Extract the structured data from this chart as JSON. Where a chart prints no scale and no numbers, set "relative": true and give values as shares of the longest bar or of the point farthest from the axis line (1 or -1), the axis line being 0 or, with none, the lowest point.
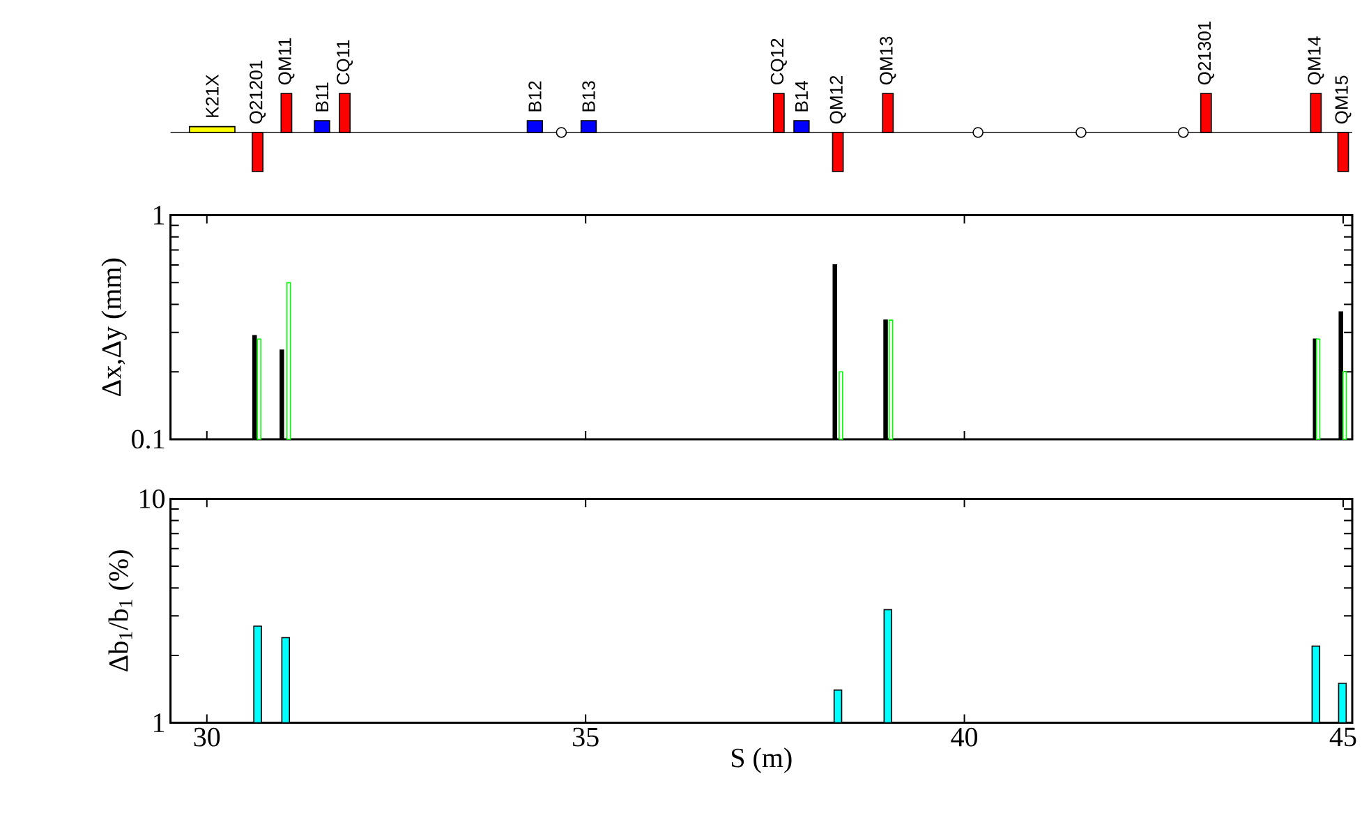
{
  "chart_data": [
    {
      "type": "bar",
      "relative": true,
      "xlim": [
        29.52,
        45.12
      ],
      "tick_labels": false,
      "series": [
        {
          "name": "K21X",
          "color": "#ffff00",
          "x": [
            30.07
          ],
          "values": [
            0.15
          ]
        },
        {
          "name": "Q21201",
          "color": "#ff0000",
          "x": [
            30.67
          ],
          "values": [
            -1
          ]
        },
        {
          "name": "QM11",
          "color": "#ff0000",
          "x": [
            31.05
          ],
          "values": [
            1
          ]
        },
        {
          "name": "B11",
          "color": "#0000ff",
          "x": [
            31.52
          ],
          "values": [
            0.3
          ]
        },
        {
          "name": "CQ11",
          "color": "#ff0000",
          "x": [
            31.82
          ],
          "values": [
            1
          ]
        },
        {
          "name": "B12",
          "color": "#0000ff",
          "x": [
            34.33
          ],
          "values": [
            0.3
          ]
        },
        {
          "name": "B13",
          "color": "#0000ff",
          "x": [
            35.04
          ],
          "values": [
            0.3
          ]
        },
        {
          "name": "CQ12",
          "color": "#ff0000",
          "x": [
            37.55
          ],
          "values": [
            1
          ]
        },
        {
          "name": "B14",
          "color": "#0000ff",
          "x": [
            37.85
          ],
          "values": [
            0.3
          ]
        },
        {
          "name": "QM12",
          "color": "#ff0000",
          "x": [
            38.33
          ],
          "values": [
            -1
          ]
        },
        {
          "name": "QM13",
          "color": "#ff0000",
          "x": [
            38.99
          ],
          "values": [
            1
          ]
        },
        {
          "name": "Q21301",
          "color": "#ff0000",
          "x": [
            43.19
          ],
          "values": [
            1
          ]
        },
        {
          "name": "QM14",
          "color": "#ff0000",
          "x": [
            44.64
          ],
          "values": [
            1
          ]
        },
        {
          "name": "QM15",
          "color": "#ff0000",
          "x": [
            45.0
          ],
          "values": [
            -1
          ]
        },
        {
          "type": "scatter",
          "marker": "circle",
          "color": "#ffffff",
          "x": [
            34.68,
            40.18,
            41.54,
            42.89
          ],
          "values": [
            0,
            0,
            0,
            0
          ]
        }
      ]
    },
    {
      "type": "bar",
      "log": "y",
      "xlim": [
        29.52,
        45.12
      ],
      "ylim": [
        0.1,
        1
      ],
      "tick_labels": "y",
      "ylabel": "Δx,Δy (mm)",
      "xticks": [
        {
          "value": 30,
          "label": null
        },
        {
          "value": 35,
          "label": null
        },
        {
          "value": 40,
          "label": null
        },
        {
          "value": 45,
          "label": null
        }
      ],
      "yticks": [
        0.1,
        {
          "value": 0.2,
          "label": null
        },
        {
          "value": 0.3,
          "label": null
        },
        {
          "value": 0.4,
          "label": null
        },
        {
          "value": 0.5,
          "label": null
        },
        {
          "value": 0.6,
          "label": null
        },
        {
          "value": 0.7,
          "label": null
        },
        {
          "value": 0.8,
          "label": null
        },
        {
          "value": 0.9,
          "label": null
        },
        1
      ],
      "series": [
        {
          "color": "#000000",
          "x": [
            30.63,
            30.99,
            38.29,
            38.96,
            44.63,
            44.97
          ],
          "values": [
            0.29,
            0.25,
            0.6,
            0.34,
            0.28,
            0.37
          ]
        },
        {
          "color": "#00ff00",
          "x": [
            30.69,
            31.08,
            38.37,
            39.03,
            44.67,
            45.02
          ],
          "values": [
            0.28,
            0.5,
            0.2,
            0.34,
            0.28,
            0.2
          ]
        }
      ]
    },
    {
      "type": "bar",
      "log": "y",
      "xlim": [
        29.52,
        45.12
      ],
      "ylim": [
        1,
        10
      ],
      "xlabel": "S (m)",
      "ylabel": "Δb$_{1}$/b$_{1}$ (%)",
      "xticks": [
        30,
        35,
        40,
        45
      ],
      "yticks": [
        1,
        {
          "value": 2,
          "label": null
        },
        {
          "value": 3,
          "label": null
        },
        {
          "value": 4,
          "label": null
        },
        {
          "value": 5,
          "label": null
        },
        {
          "value": 6,
          "label": null
        },
        {
          "value": 7,
          "label": null
        },
        {
          "value": 8,
          "label": null
        },
        {
          "value": 9,
          "label": null
        },
        10
      ],
      "series": [
        {
          "color": "#00ffff",
          "x": [
            30.67,
            31.04,
            38.33,
            38.99,
            44.64,
            44.99
          ],
          "values": [
            2.7,
            2.4,
            1.4,
            3.2,
            2.2,
            1.5
          ]
        }
      ]
    }
  ]
}
